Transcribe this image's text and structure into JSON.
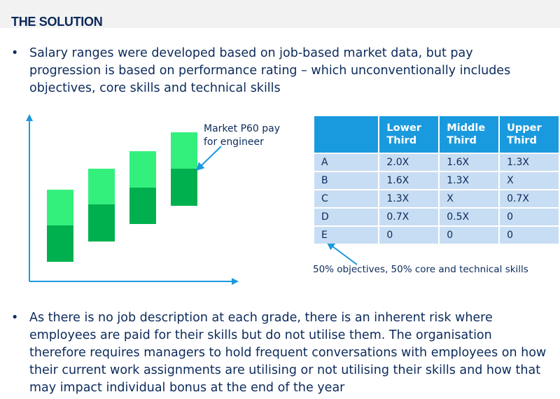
{
  "title": "THE SOLUTION",
  "bullet_symbol": "•",
  "bullets": [
    "Salary ranges were developed based on job-based market data, but pay progression is based on performance rating – which unconventionally includes objectives, core skills and technical skills",
    "As there is no job description at each grade, there is an inherent risk where employees are paid for their skills but do not utilise them. The organisation therefore requires managers to hold frequent conversations with employees on how their current work assignments are utilising or not utilising their skills and how that may impact individual bonus at the end of the year"
  ],
  "diagram": {
    "callout": "Market P60 pay for engineer",
    "colors": {
      "upper": "#33f07d",
      "lower": "#00b04f",
      "axis": "#1a9ade",
      "arrow": "#1a9ade"
    }
  },
  "table": {
    "headers": [
      "",
      "Lower Third",
      "Middle Third",
      "Upper Third"
    ],
    "rows": [
      [
        "A",
        "2.0X",
        "1.6X",
        "1.3X"
      ],
      [
        "B",
        "1.6X",
        "1.3X",
        "X"
      ],
      [
        "C",
        "1.3X",
        "X",
        "0.7X"
      ],
      [
        "D",
        "0.7X",
        "0.5X",
        "0"
      ],
      [
        "E",
        "0",
        "0",
        "0"
      ]
    ],
    "note": "50% objectives, 50% core and technical skills",
    "colors": {
      "header": "#1a9ade",
      "cell": "#c7ddf3"
    }
  }
}
